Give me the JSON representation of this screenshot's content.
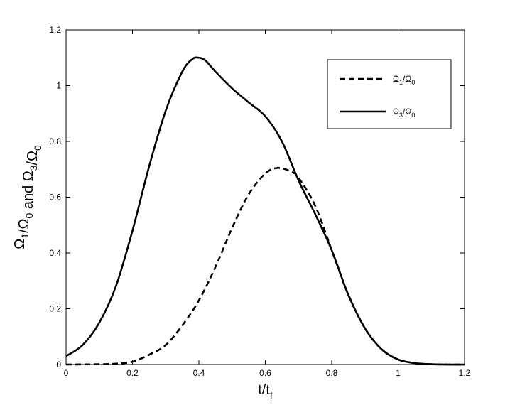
{
  "chart_data": {
    "type": "line",
    "title": "",
    "xlabel": {
      "base": "t/t",
      "sub": "f"
    },
    "ylabel": {
      "parts": [
        {
          "t": "Ω"
        },
        {
          "t": "1",
          "sub": true
        },
        {
          "t": "/Ω"
        },
        {
          "t": "0",
          "sub": true
        },
        {
          "t": " and Ω"
        },
        {
          "t": "3",
          "sub": true
        },
        {
          "t": "/Ω"
        },
        {
          "t": "0",
          "sub": true
        }
      ]
    },
    "xlim": [
      0,
      1.2
    ],
    "ylim": [
      0,
      1.2
    ],
    "xticks": [
      "0",
      "0.2",
      "0.4",
      "0.6",
      "0.8",
      "1",
      "1.2"
    ],
    "yticks": [
      "0",
      "0.2",
      "0.4",
      "0.6",
      "0.8",
      "1",
      "1.2"
    ],
    "grid": false,
    "legend_position": "top-right",
    "series": [
      {
        "name": {
          "parts": [
            {
              "t": "Ω"
            },
            {
              "t": "1",
              "sub": true
            },
            {
              "t": "/Ω"
            },
            {
              "t": "0",
              "sub": true
            }
          ]
        },
        "style": "dashed",
        "x": [
          0,
          0.1,
          0.15,
          0.2,
          0.25,
          0.3,
          0.35,
          0.4,
          0.45,
          0.5,
          0.55,
          0.6,
          0.64,
          0.68,
          0.7,
          0.75,
          0.8,
          0.85,
          0.9,
          0.95,
          1.0,
          1.05,
          1.1,
          1.15,
          1.2
        ],
        "y": [
          0,
          0.001,
          0.003,
          0.01,
          0.035,
          0.07,
          0.14,
          0.23,
          0.35,
          0.49,
          0.61,
          0.685,
          0.705,
          0.69,
          0.67,
          0.57,
          0.41,
          0.25,
          0.13,
          0.055,
          0.018,
          0.005,
          0.001,
          0,
          0
        ]
      },
      {
        "name": {
          "parts": [
            {
              "t": "Ω"
            },
            {
              "t": "3",
              "sub": true
            },
            {
              "t": "/Ω"
            },
            {
              "t": "0",
              "sub": true
            }
          ]
        },
        "style": "solid",
        "x": [
          0,
          0.05,
          0.1,
          0.15,
          0.2,
          0.25,
          0.3,
          0.35,
          0.38,
          0.4,
          0.42,
          0.45,
          0.5,
          0.55,
          0.6,
          0.65,
          0.7,
          0.75,
          0.8,
          0.85,
          0.9,
          0.95,
          1.0,
          1.05,
          1.1,
          1.15,
          1.2
        ],
        "y": [
          0.03,
          0.07,
          0.15,
          0.28,
          0.48,
          0.71,
          0.91,
          1.05,
          1.095,
          1.1,
          1.09,
          1.05,
          0.99,
          0.94,
          0.89,
          0.8,
          0.66,
          0.54,
          0.41,
          0.25,
          0.13,
          0.055,
          0.018,
          0.005,
          0.001,
          0,
          0
        ]
      }
    ]
  }
}
